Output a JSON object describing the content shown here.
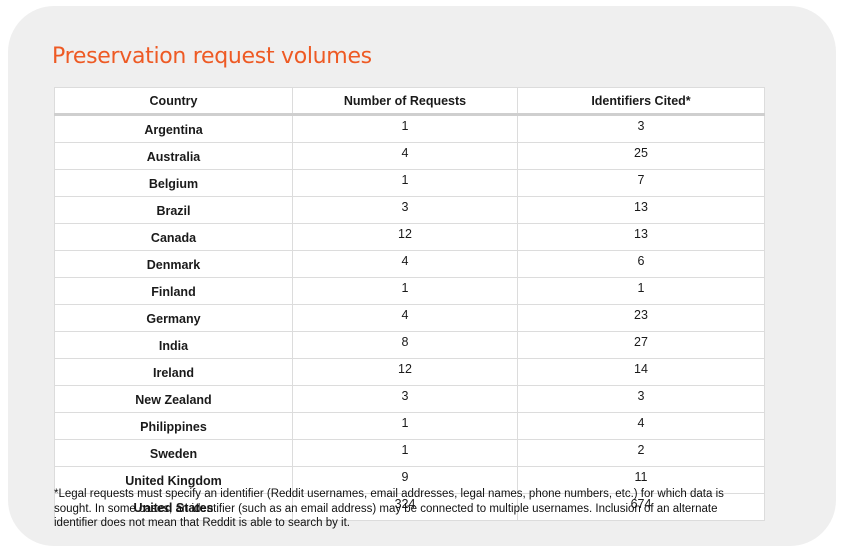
{
  "title": "Preservation request volumes",
  "table": {
    "headers": [
      "Country",
      "Number of Requests",
      "Identifiers Cited*"
    ],
    "rows": [
      {
        "country": "Argentina",
        "requests": "1",
        "identifiers": "3"
      },
      {
        "country": "Australia",
        "requests": "4",
        "identifiers": "25"
      },
      {
        "country": "Belgium",
        "requests": "1",
        "identifiers": "7"
      },
      {
        "country": "Brazil",
        "requests": "3",
        "identifiers": "13"
      },
      {
        "country": "Canada",
        "requests": "12",
        "identifiers": "13"
      },
      {
        "country": "Denmark",
        "requests": "4",
        "identifiers": "6"
      },
      {
        "country": "Finland",
        "requests": "1",
        "identifiers": "1"
      },
      {
        "country": "Germany",
        "requests": "4",
        "identifiers": "23"
      },
      {
        "country": "India",
        "requests": "8",
        "identifiers": "27"
      },
      {
        "country": "Ireland",
        "requests": "12",
        "identifiers": "14"
      },
      {
        "country": "New Zealand",
        "requests": "3",
        "identifiers": "3"
      },
      {
        "country": "Philippines",
        "requests": "1",
        "identifiers": "4"
      },
      {
        "country": "Sweden",
        "requests": "1",
        "identifiers": "2"
      },
      {
        "country": "United Kingdom",
        "requests": "9",
        "identifiers": "11"
      },
      {
        "country": "United States",
        "requests": "324",
        "identifiers": "674"
      }
    ]
  },
  "footnote": "*Legal requests must specify an identifier (Reddit usernames, email addresses, legal names, phone numbers, etc.) for which data is sought. In some cases, an identifier (such as an email address) may be connected to multiple usernames. Inclusion of an alternate identifier does not mean that Reddit is able to search by it.",
  "colors": {
    "accent": "#ee5a24",
    "card": "#efefef",
    "border": "#dcdcdc"
  }
}
